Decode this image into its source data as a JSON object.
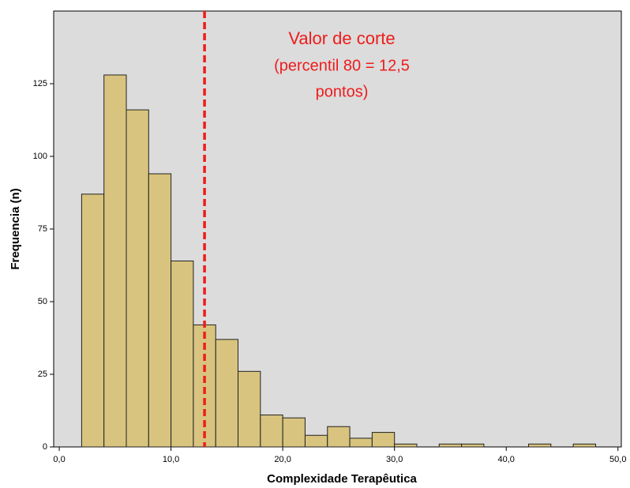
{
  "chart_data": {
    "type": "histogram",
    "xlabel": "Complexidade Terapêutica",
    "ylabel": "Frequencia (n)",
    "bins": [
      2,
      4,
      6,
      8,
      10,
      12,
      14,
      16,
      18,
      20,
      22,
      24,
      26,
      28,
      30,
      32,
      34,
      36,
      38,
      40,
      42,
      44,
      46,
      48
    ],
    "values": [
      87,
      128,
      116,
      94,
      64,
      42,
      37,
      26,
      11,
      10,
      4,
      7,
      3,
      5,
      1,
      0,
      1,
      1,
      0,
      0,
      1,
      0,
      1
    ],
    "color": "#d8c47e",
    "xlim": [
      -0.5,
      50.3
    ],
    "xticks": [
      {
        "value": 0,
        "label": "0,0"
      },
      {
        "value": 10,
        "label": "10,0"
      },
      {
        "value": 20,
        "label": "20,0"
      },
      {
        "value": 30,
        "label": "30,0"
      },
      {
        "value": 40,
        "label": "40,0"
      },
      {
        "value": 50,
        "label": "50,0"
      }
    ],
    "ylim": [
      0,
      150
    ],
    "yticks": [
      0,
      25,
      50,
      75,
      100,
      125
    ],
    "reference_line": {
      "x": 13,
      "color": "#ee1c1c"
    },
    "annotation": [
      "Valor de corte",
      "(percentil 80 = 12,5",
      "pontos)"
    ]
  }
}
